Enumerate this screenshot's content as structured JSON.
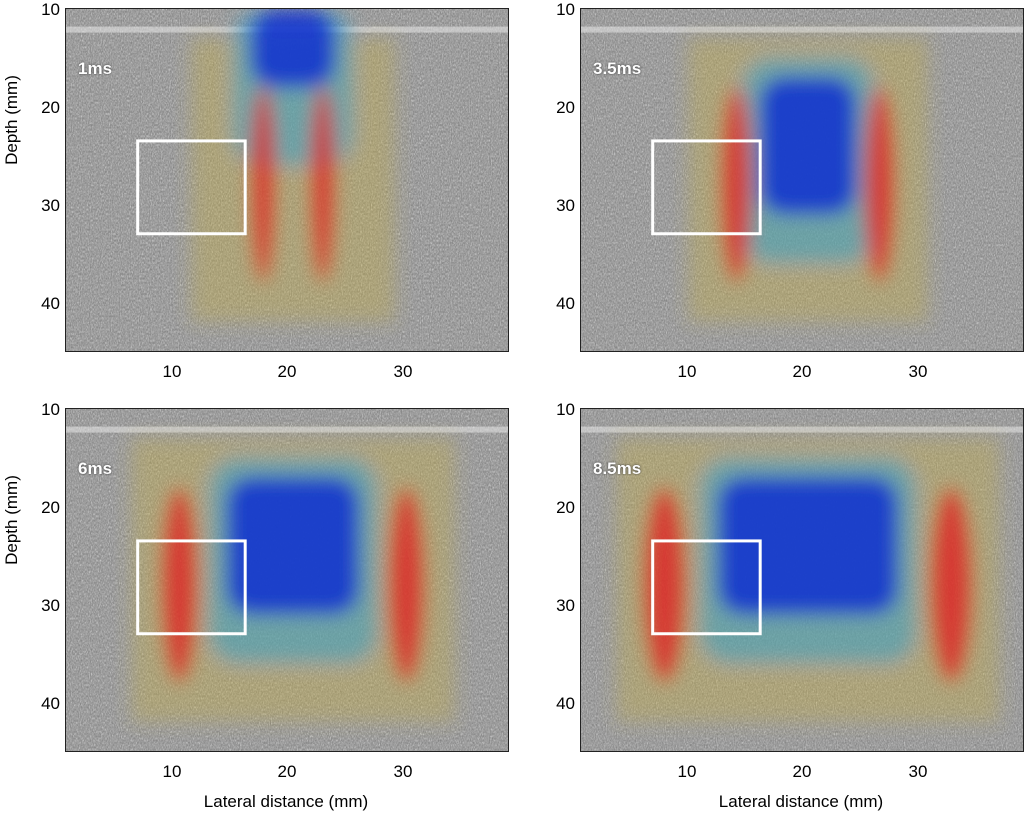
{
  "panels": [
    {
      "time_label": "1ms",
      "roi_box": {
        "x": [
          7,
          16
        ],
        "y": [
          23.5,
          33
        ]
      },
      "shear_wave": {
        "red_lobes": [
          17.5,
          22.5
        ],
        "blue_width_mm": 7,
        "blue_center": 20
      }
    },
    {
      "time_label": "3.5ms",
      "roi_box": {
        "x": [
          7,
          16
        ],
        "y": [
          23.5,
          33
        ]
      },
      "shear_wave": {
        "red_lobes": [
          14,
          26
        ],
        "blue_width_mm": 8,
        "blue_center": 20
      }
    },
    {
      "time_label": "6ms",
      "roi_box": {
        "x": [
          7,
          16
        ],
        "y": [
          23.5,
          33
        ]
      },
      "shear_wave": {
        "red_lobes": [
          10.5,
          29.5
        ],
        "blue_width_mm": 11,
        "blue_center": 20
      }
    },
    {
      "time_label": "8.5ms",
      "roi_box": {
        "x": [
          7,
          16
        ],
        "y": [
          23.5,
          33
        ]
      },
      "shear_wave": {
        "red_lobes": [
          8,
          32
        ],
        "blue_width_mm": 15,
        "blue_center": 20
      }
    }
  ],
  "axes": {
    "ylabel": "Depth (mm)",
    "xlabel": "Lateral distance (mm)",
    "yticks": [
      "10",
      "20",
      "30",
      "40"
    ],
    "xticks": [
      "10",
      "20",
      "30"
    ],
    "ylim": [
      10,
      45
    ],
    "xlim": [
      1,
      38
    ]
  },
  "colors": {
    "positive": "#e02020",
    "negative": "#1030d0",
    "background": "#808080",
    "roi": "#ffffff"
  }
}
